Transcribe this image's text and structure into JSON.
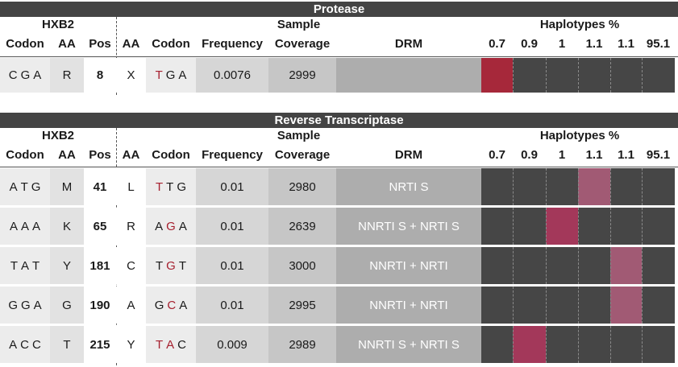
{
  "columns": {
    "hxb2": "HXB2",
    "sample": "Sample",
    "haplotypes": "Haplotypes %",
    "codon": "Codon",
    "aa": "AA",
    "pos": "Pos",
    "frequency": "Frequency",
    "coverage": "Coverage",
    "drm": "DRM"
  },
  "colors": {
    "title_bar": "#444444",
    "hap_dark": "#464646",
    "hap_strong": "#a6283a",
    "hap_medium": "#a3385a",
    "hap_light": "#a15a74",
    "codon_red": "#a6202f"
  },
  "sections": [
    {
      "title": "Protease",
      "haplotypes": [
        "0.7",
        "0.9",
        "1",
        "1.1",
        "1.1",
        "95.1"
      ],
      "rows": [
        {
          "hxb2_codon": [
            "C",
            "G",
            "A"
          ],
          "hxb2_aa": "R",
          "pos": "8",
          "aa": "X",
          "codon": [
            "T",
            "G",
            "A"
          ],
          "codon_mut": [
            true,
            false,
            false
          ],
          "frequency": "0.0076",
          "coverage": "2999",
          "drm": "",
          "hap_index": 0,
          "hap_shade": "strong"
        }
      ]
    },
    {
      "title": "Reverse Transcriptase",
      "haplotypes": [
        "0.7",
        "0.9",
        "1",
        "1.1",
        "1.1",
        "95.1"
      ],
      "rows": [
        {
          "hxb2_codon": [
            "A",
            "T",
            "G"
          ],
          "hxb2_aa": "M",
          "pos": "41",
          "aa": "L",
          "codon": [
            "T",
            "T",
            "G"
          ],
          "codon_mut": [
            true,
            false,
            false
          ],
          "frequency": "0.01",
          "coverage": "2980",
          "drm": "NRTI S",
          "hap_index": 3,
          "hap_shade": "light"
        },
        {
          "hxb2_codon": [
            "A",
            "A",
            "A"
          ],
          "hxb2_aa": "K",
          "pos": "65",
          "aa": "R",
          "codon": [
            "A",
            "G",
            "A"
          ],
          "codon_mut": [
            false,
            true,
            false
          ],
          "frequency": "0.01",
          "coverage": "2639",
          "drm": "NNRTI S + NRTI S",
          "hap_index": 2,
          "hap_shade": "medium"
        },
        {
          "hxb2_codon": [
            "T",
            "A",
            "T"
          ],
          "hxb2_aa": "Y",
          "pos": "181",
          "aa": "C",
          "codon": [
            "T",
            "G",
            "T"
          ],
          "codon_mut": [
            false,
            true,
            false
          ],
          "frequency": "0.01",
          "coverage": "3000",
          "drm": "NNRTI + NRTI",
          "hap_index": 4,
          "hap_shade": "light"
        },
        {
          "hxb2_codon": [
            "G",
            "G",
            "A"
          ],
          "hxb2_aa": "G",
          "pos": "190",
          "aa": "A",
          "codon": [
            "G",
            "C",
            "A"
          ],
          "codon_mut": [
            false,
            true,
            false
          ],
          "frequency": "0.01",
          "coverage": "2995",
          "drm": "NNRTI + NRTI",
          "hap_index": 4,
          "hap_shade": "light"
        },
        {
          "hxb2_codon": [
            "A",
            "C",
            "C"
          ],
          "hxb2_aa": "T",
          "pos": "215",
          "aa": "Y",
          "codon": [
            "T",
            "A",
            "C"
          ],
          "codon_mut": [
            true,
            true,
            false
          ],
          "frequency": "0.009",
          "coverage": "2989",
          "drm": "NNRTI S + NRTI S",
          "hap_index": 1,
          "hap_shade": "medium"
        }
      ]
    }
  ]
}
